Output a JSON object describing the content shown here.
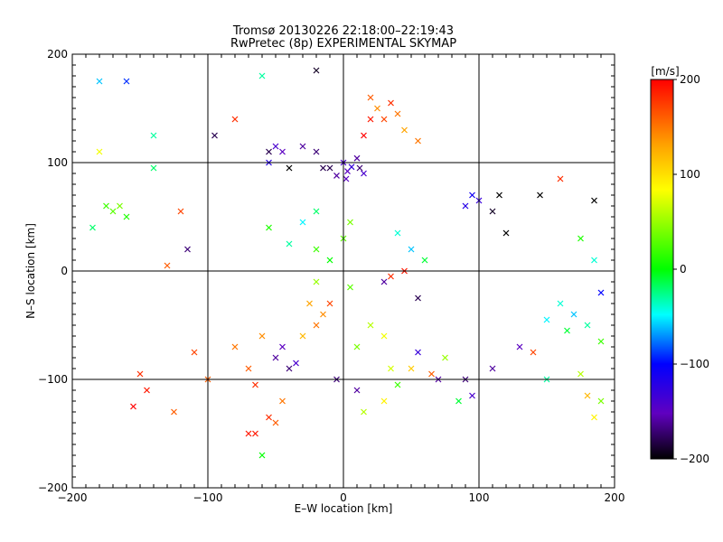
{
  "chart_data": {
    "type": "scatter",
    "title": "Tromsø 20130226 22:18:00–22:19:43",
    "subtitle": "RwPretec (8p) EXPERIMENTAL SKYMAP",
    "xlabel": "E–W location [km]",
    "ylabel": "N–S location [km]",
    "xlim": [
      -200,
      200
    ],
    "ylim": [
      -200,
      200
    ],
    "xticks": [
      -200,
      -100,
      0,
      100,
      200
    ],
    "yticks": [
      -200,
      -100,
      0,
      100,
      200
    ],
    "xtick_labels": [
      "−200",
      "−100",
      "0",
      "100",
      "200"
    ],
    "ytick_labels": [
      "−200",
      "−100",
      "0",
      "100",
      "200"
    ],
    "grid": true,
    "colorbar": {
      "label": "[m/s]",
      "range": [
        -200,
        200
      ],
      "ticks": [
        200,
        100,
        0,
        -100,
        -200
      ],
      "tick_labels": [
        "200",
        "100",
        "0",
        "−100",
        "−200"
      ],
      "colormap": "rainbow",
      "colors_top_to_bottom": [
        "#ff0000",
        "#ffa000",
        "#ffff00",
        "#00ff00",
        "#00ffff",
        "#0000ff",
        "#6000c0",
        "#000000"
      ]
    },
    "point_markers": [
      "dot",
      "x"
    ],
    "points": [
      [
        -180,
        110,
        80,
        "x"
      ],
      [
        -175,
        60,
        20,
        "x"
      ],
      [
        -170,
        55,
        30,
        "x"
      ],
      [
        -165,
        60,
        40,
        "x"
      ],
      [
        -160,
        50,
        10,
        "x"
      ],
      [
        -185,
        40,
        -20,
        "x"
      ],
      [
        -160,
        175,
        -90,
        "x"
      ],
      [
        -180,
        175,
        -60,
        "x"
      ],
      [
        -140,
        125,
        -30,
        "x"
      ],
      [
        -140,
        95,
        -20,
        "x"
      ],
      [
        -95,
        125,
        -180,
        "x"
      ],
      [
        -80,
        140,
        180,
        "x"
      ],
      [
        -60,
        180,
        -30,
        "x"
      ],
      [
        -20,
        185,
        -190,
        "x"
      ],
      [
        -55,
        110,
        -180,
        "x"
      ],
      [
        -50,
        115,
        -140,
        "x"
      ],
      [
        -45,
        110,
        -150,
        "x"
      ],
      [
        -55,
        100,
        -120,
        "x"
      ],
      [
        -40,
        95,
        -200,
        "x"
      ],
      [
        -30,
        115,
        -160,
        "x"
      ],
      [
        -20,
        110,
        -170,
        "x"
      ],
      [
        -15,
        95,
        -180,
        "x"
      ],
      [
        0,
        100,
        -140,
        "x"
      ],
      [
        3,
        92,
        -150,
        "x"
      ],
      [
        6,
        96,
        -130,
        "x"
      ],
      [
        10,
        104,
        -160,
        "x"
      ],
      [
        15,
        90,
        -140,
        "x"
      ],
      [
        -5,
        88,
        -160,
        "x"
      ],
      [
        2,
        85,
        -150,
        "x"
      ],
      [
        12,
        95,
        -170,
        "x"
      ],
      [
        20,
        160,
        160,
        "x"
      ],
      [
        25,
        150,
        140,
        "x"
      ],
      [
        35,
        155,
        180,
        "x"
      ],
      [
        40,
        145,
        150,
        "x"
      ],
      [
        30,
        140,
        170,
        "x"
      ],
      [
        45,
        130,
        130,
        "x"
      ],
      [
        20,
        140,
        190,
        "x"
      ],
      [
        15,
        125,
        200,
        "x"
      ],
      [
        55,
        120,
        150,
        "x"
      ],
      [
        -10,
        95,
        -180,
        "x"
      ],
      [
        95,
        70,
        -110,
        "x"
      ],
      [
        100,
        65,
        -130,
        "x"
      ],
      [
        90,
        60,
        -120,
        "x"
      ],
      [
        110,
        55,
        -190,
        "x"
      ],
      [
        115,
        70,
        -200,
        "x"
      ],
      [
        120,
        35,
        -200,
        "x"
      ],
      [
        145,
        70,
        -200,
        "x"
      ],
      [
        160,
        85,
        180,
        "x"
      ],
      [
        185,
        65,
        -200,
        "x"
      ],
      [
        175,
        30,
        10,
        "x"
      ],
      [
        185,
        10,
        -40,
        "x"
      ],
      [
        190,
        -20,
        -100,
        "x"
      ],
      [
        160,
        -30,
        -40,
        "x"
      ],
      [
        170,
        -40,
        -60,
        "x"
      ],
      [
        180,
        -50,
        -30,
        "x"
      ],
      [
        165,
        -55,
        -10,
        "x"
      ],
      [
        150,
        -45,
        -50,
        "x"
      ],
      [
        190,
        -65,
        20,
        "x"
      ],
      [
        140,
        -75,
        170,
        "x"
      ],
      [
        175,
        -95,
        60,
        "x"
      ],
      [
        150,
        -100,
        -30,
        "x"
      ],
      [
        180,
        -115,
        120,
        "x"
      ],
      [
        190,
        -120,
        40,
        "x"
      ],
      [
        185,
        -135,
        90,
        "x"
      ],
      [
        130,
        -70,
        -150,
        "x"
      ],
      [
        110,
        -90,
        -160,
        "x"
      ],
      [
        90,
        -100,
        -170,
        "x"
      ],
      [
        95,
        -115,
        -140,
        "x"
      ],
      [
        70,
        -100,
        -160,
        "x"
      ],
      [
        55,
        -75,
        -130,
        "x"
      ],
      [
        -120,
        55,
        170,
        "x"
      ],
      [
        -115,
        20,
        -170,
        "x"
      ],
      [
        -110,
        -75,
        170,
        "x"
      ],
      [
        -100,
        -100,
        160,
        "x"
      ],
      [
        -130,
        5,
        160,
        "x"
      ],
      [
        -150,
        -95,
        180,
        "x"
      ],
      [
        -145,
        -110,
        190,
        "x"
      ],
      [
        -155,
        -125,
        200,
        "x"
      ],
      [
        -125,
        -130,
        160,
        "x"
      ],
      [
        -80,
        -70,
        150,
        "x"
      ],
      [
        -70,
        -90,
        160,
        "x"
      ],
      [
        -65,
        -105,
        180,
        "x"
      ],
      [
        -60,
        -60,
        140,
        "x"
      ],
      [
        -50,
        -80,
        -160,
        "x"
      ],
      [
        -45,
        -70,
        -150,
        "x"
      ],
      [
        -40,
        -90,
        -170,
        "x"
      ],
      [
        -35,
        -85,
        -140,
        "x"
      ],
      [
        -30,
        -60,
        120,
        "x"
      ],
      [
        -20,
        -50,
        150,
        "x"
      ],
      [
        -15,
        -40,
        140,
        "x"
      ],
      [
        -25,
        -30,
        130,
        "x"
      ],
      [
        -10,
        -30,
        170,
        "x"
      ],
      [
        10,
        -70,
        40,
        "x"
      ],
      [
        20,
        -50,
        60,
        "x"
      ],
      [
        30,
        -60,
        80,
        "x"
      ],
      [
        35,
        -90,
        70,
        "x"
      ],
      [
        40,
        -105,
        20,
        "x"
      ],
      [
        50,
        -90,
        110,
        "x"
      ],
      [
        30,
        -120,
        90,
        "x"
      ],
      [
        15,
        -130,
        60,
        "x"
      ],
      [
        -55,
        -135,
        180,
        "x"
      ],
      [
        -65,
        -150,
        190,
        "x"
      ],
      [
        -60,
        -170,
        0,
        "x"
      ],
      [
        -70,
        -150,
        190,
        "x"
      ],
      [
        -50,
        -140,
        160,
        "x"
      ],
      [
        -45,
        -120,
        150,
        "x"
      ],
      [
        -20,
        20,
        20,
        "x"
      ],
      [
        -10,
        10,
        0,
        "x"
      ],
      [
        0,
        30,
        30,
        "x"
      ],
      [
        5,
        45,
        40,
        "x"
      ],
      [
        -20,
        55,
        -20,
        "x"
      ],
      [
        -30,
        45,
        -50,
        "x"
      ],
      [
        40,
        35,
        -40,
        "x"
      ],
      [
        50,
        20,
        -60,
        "x"
      ],
      [
        60,
        10,
        -10,
        "x"
      ],
      [
        -55,
        40,
        10,
        "x"
      ],
      [
        -40,
        25,
        -30,
        "x"
      ],
      [
        -20,
        -10,
        50,
        "x"
      ],
      [
        5,
        -15,
        30,
        "x"
      ],
      [
        35,
        -5,
        180,
        "x"
      ],
      [
        45,
        0,
        190,
        "x"
      ],
      [
        30,
        -10,
        -160,
        "x"
      ],
      [
        55,
        -25,
        -180,
        "x"
      ],
      [
        -5,
        -100,
        -170,
        "x"
      ],
      [
        10,
        -110,
        -160,
        "x"
      ],
      [
        65,
        -95,
        160,
        "x"
      ],
      [
        75,
        -80,
        50,
        "x"
      ],
      [
        85,
        -120,
        -10,
        "x"
      ]
    ]
  }
}
